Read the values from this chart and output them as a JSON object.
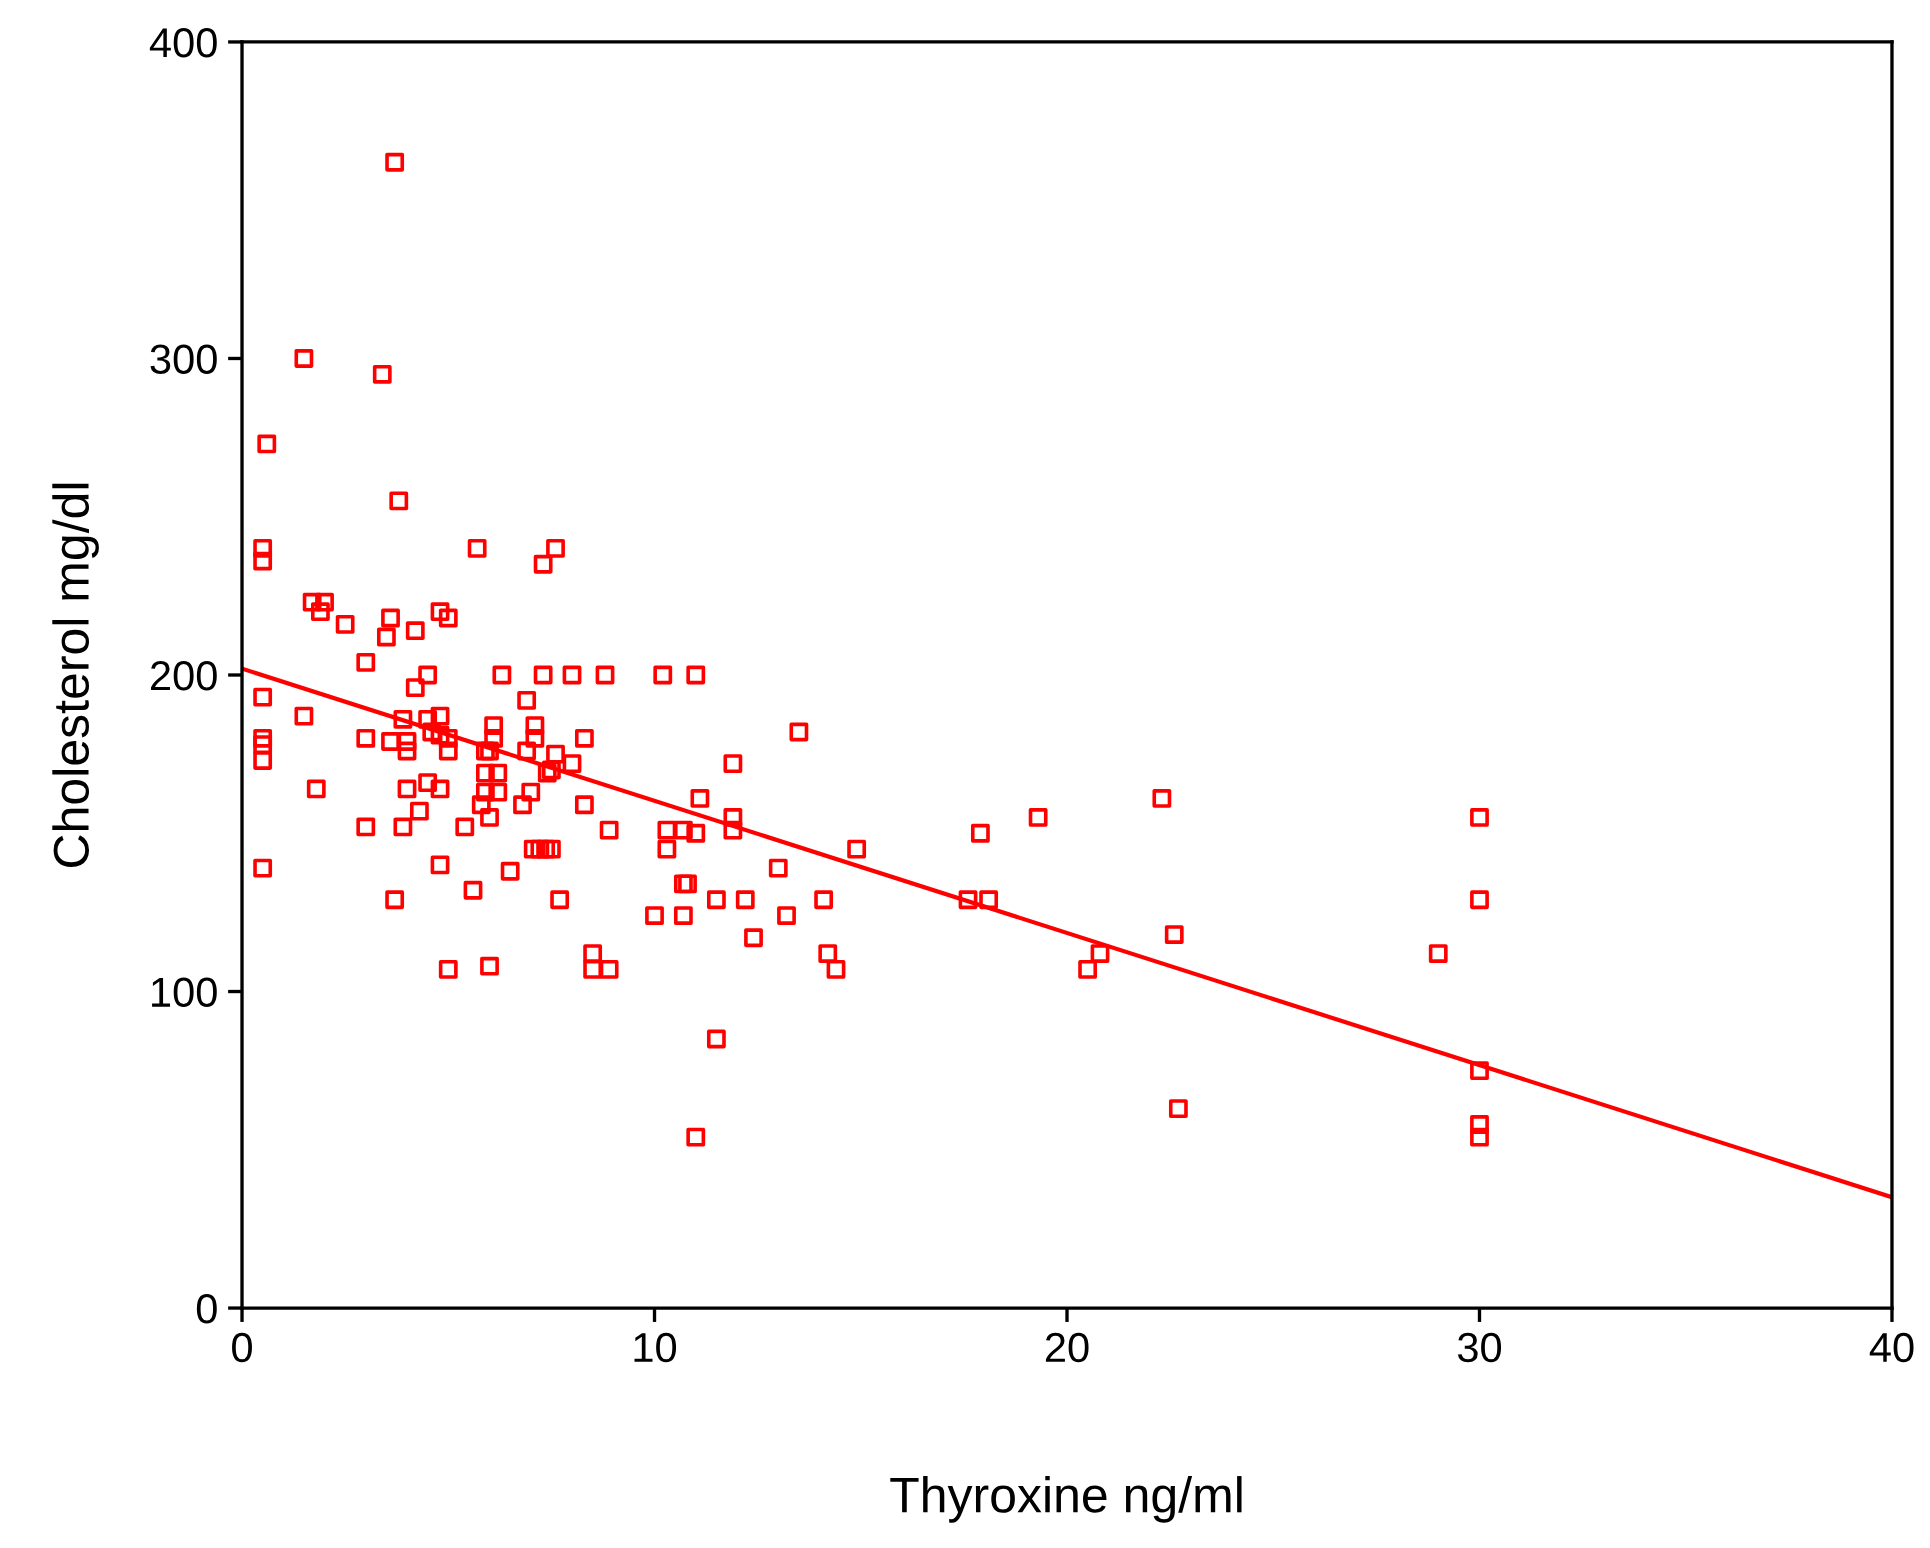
{
  "chart_data": {
    "type": "scatter",
    "xlabel": "Thyroxine ng/ml",
    "ylabel": "Cholesterol mg/dl",
    "xlim": [
      0,
      40
    ],
    "ylim": [
      0,
      400
    ],
    "xticks": [
      0,
      10,
      20,
      30,
      40
    ],
    "yticks": [
      0,
      100,
      200,
      300,
      400
    ],
    "grid": false,
    "legend": false,
    "series": [
      {
        "color": "#ff0000",
        "marker": "square",
        "x": [
          3.7,
          1.5,
          3.4,
          0.6,
          3.8,
          0.5,
          0.5,
          5.7,
          7.6,
          7.3,
          1.7,
          2.0,
          1.9,
          2.5,
          3.6,
          3.5,
          4.2,
          4.8,
          5.0,
          3.0,
          4.5,
          4.2,
          6.3,
          7.3,
          8.0,
          8.8,
          0.5,
          1.5,
          6.9,
          3.9,
          4.5,
          4.8,
          3.0,
          3.6,
          4.0,
          4.0,
          4.6,
          4.8,
          5.0,
          5.0,
          0.5,
          0.5,
          0.5,
          6.1,
          6.1,
          7.1,
          7.1,
          5.9,
          6.0,
          6.9,
          7.6,
          8.3,
          8.0,
          7.4,
          7.5,
          5.9,
          6.2,
          1.8,
          4.0,
          4.5,
          4.8,
          5.9,
          6.2,
          7.0,
          5.8,
          6.8,
          8.3,
          4.3,
          6.0,
          3.0,
          3.9,
          5.4,
          8.9,
          7.06,
          7.22,
          7.36,
          7.5,
          0.5,
          4.8,
          6.5,
          5.6,
          3.7,
          7.7,
          5.0,
          6.0,
          8.5,
          8.5,
          8.9,
          10.2,
          11.0,
          13.5,
          11.9,
          11.1,
          11.9,
          11.9,
          10.3,
          10.7,
          11.0,
          10.3,
          13.0,
          14.9,
          17.9,
          10.7,
          10.8,
          11.5,
          12.2,
          14.1,
          10.0,
          10.7,
          13.2,
          12.4,
          14.2,
          14.4,
          11.5,
          11.0,
          17.6,
          18.1,
          22.3,
          30.0,
          19.3,
          30.0,
          22.6,
          29.0,
          20.8,
          20.5,
          30.0,
          22.7,
          30.0,
          30.0
        ],
        "values": [
          362,
          300,
          295,
          273,
          255,
          240,
          236,
          240,
          240,
          235,
          223,
          223,
          220,
          216,
          218,
          212,
          214,
          220,
          218,
          204,
          200,
          196,
          200,
          200,
          200,
          200,
          193,
          187,
          192,
          186,
          186,
          187,
          180,
          179,
          179,
          176,
          182,
          181,
          180,
          176,
          180,
          178,
          173,
          184,
          180,
          184,
          180,
          176,
          176,
          176,
          175,
          180,
          172,
          169,
          170,
          169,
          169,
          164,
          164,
          166,
          164,
          163,
          163,
          163,
          159,
          159,
          159,
          157,
          155,
          152,
          152,
          152,
          151,
          145,
          145,
          145,
          145,
          139,
          140,
          138,
          132,
          129,
          129,
          107,
          108,
          112,
          107,
          107,
          200,
          200,
          182,
          172,
          161,
          155,
          151,
          151,
          151,
          150,
          145,
          139,
          145,
          150,
          134,
          134,
          129,
          129,
          129,
          124,
          124,
          124,
          117,
          112,
          107,
          85,
          54,
          129,
          129,
          161,
          155,
          155,
          129,
          118,
          112,
          112,
          107,
          75,
          63,
          58,
          54
        ]
      },
      {
        "type": "line",
        "color": "#ff0000",
        "marker": "none",
        "line_style": "solid",
        "x": [
          0,
          40
        ],
        "values": [
          202,
          35
        ]
      }
    ]
  }
}
